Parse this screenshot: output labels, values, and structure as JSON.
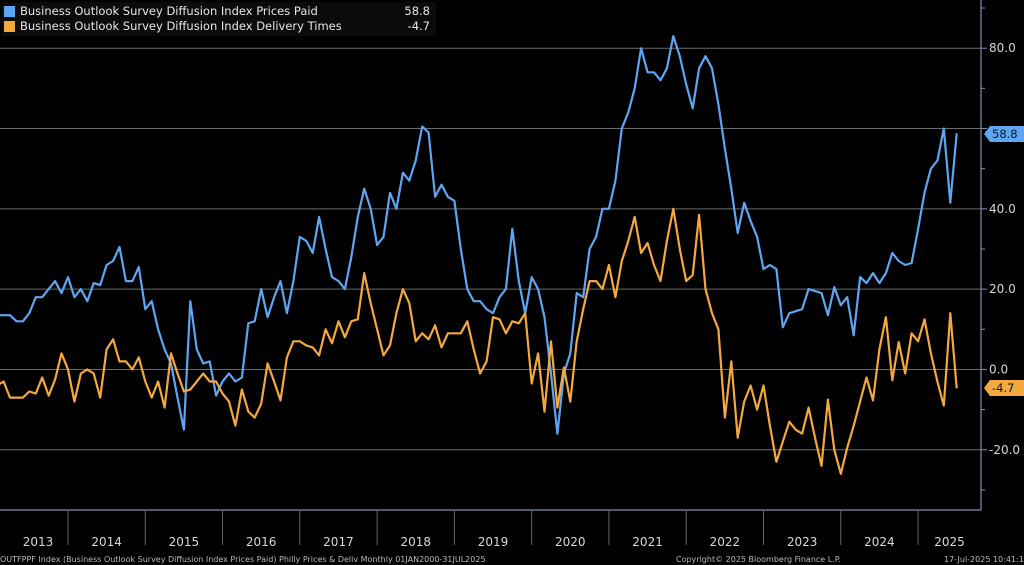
{
  "legend": [
    {
      "name": "Business Outlook Survey Diffusion Index Prices Paid",
      "value": "58.8",
      "color": "#5ea6f2"
    },
    {
      "name": "Business Outlook Survey Diffusion Index Delivery Times",
      "value": "-4.7",
      "color": "#f4a83e"
    }
  ],
  "footer": {
    "source": "OUTFPPF Index (Business Outlook Survey Diffusion Index Prices Paid) Philly Prices & Deliv  Monthly 01JAN2000-31JUL2025",
    "copyright": "Copyright© 2025 Bloomberg Finance L.P.",
    "timestamp": "17-Jul-2025 10:41:1"
  },
  "chart_data": {
    "type": "line",
    "title": "",
    "xlabel": "",
    "ylabel": "",
    "x_start": "2013-01",
    "frequency": "monthly",
    "x_ticks": [
      "2013",
      "2014",
      "2015",
      "2016",
      "2017",
      "2018",
      "2019",
      "2020",
      "2021",
      "2022",
      "2023",
      "2024",
      "2025"
    ],
    "y_ticks": [
      {
        "value": 80,
        "label": "80.0"
      },
      {
        "value": 40,
        "label": "40.0"
      },
      {
        "value": 20,
        "label": "20.0"
      },
      {
        "value": 0,
        "label": "0.0"
      },
      {
        "value": -20,
        "label": "-20.0"
      }
    ],
    "gridlines": [
      80,
      60,
      40,
      20,
      0,
      -20
    ],
    "ylim": [
      -35,
      92
    ],
    "grid": true,
    "y_axis_side": "right",
    "legend_position": "top-left",
    "series": [
      {
        "name": "Business Outlook Survey Diffusion Index Prices Paid",
        "color": "#5ea6f2",
        "last_value": "58.8",
        "values": [
          14,
          13.5,
          13.5,
          13.5,
          12,
          12,
          14,
          18,
          18,
          20,
          22,
          19,
          23,
          18,
          20,
          17,
          21.5,
          21,
          26,
          27,
          30.5,
          22,
          22,
          25.5,
          15,
          17,
          10,
          5,
          1.5,
          -7,
          -15,
          17,
          5,
          1.5,
          2,
          -6.5,
          -3,
          -1,
          -3,
          -2,
          11.5,
          12,
          20,
          13,
          18,
          22,
          14,
          22,
          33,
          32,
          29,
          38,
          30,
          23,
          22,
          20,
          28,
          38,
          45,
          40,
          31,
          33,
          44,
          40,
          49,
          47,
          52,
          60.5,
          59,
          43,
          46,
          43,
          42,
          30,
          20,
          17,
          17,
          15,
          14,
          18,
          20,
          35,
          22,
          14,
          23,
          20,
          13,
          -1,
          -16,
          -1,
          4,
          19,
          18,
          30,
          33,
          40,
          40,
          47,
          60,
          64,
          70,
          80,
          74,
          74,
          72,
          75,
          83,
          78,
          71,
          65,
          75,
          78,
          75,
          66,
          55,
          45,
          34,
          41.5,
          37,
          33,
          25,
          26,
          25,
          10.5,
          14,
          14.5,
          15,
          20,
          19.5,
          19,
          13.5,
          20.5,
          16,
          18,
          8.5,
          23,
          21.5,
          24,
          21.5,
          24,
          29,
          27,
          26,
          26.5,
          35,
          44,
          50,
          52,
          60,
          41.5,
          58.8
        ]
      },
      {
        "name": "Business Outlook Survey Diffusion Index Delivery Times",
        "color": "#f4a83e",
        "last_value": "-4.7",
        "values": [
          -3,
          -4,
          -3,
          -7,
          -7,
          -7,
          -5.5,
          -6,
          -2,
          -6.5,
          -2.5,
          4,
          0,
          -8,
          -1,
          0,
          -1,
          -7,
          5,
          7.5,
          2,
          2,
          0,
          3,
          -3,
          -7,
          -3,
          -9.5,
          4,
          -1,
          -5.5,
          -5,
          -3,
          -1,
          -3,
          -3,
          -6,
          -8,
          -14,
          -5,
          -10.5,
          -12,
          -8.5,
          1.5,
          -3,
          -7.7,
          3,
          7,
          7,
          6,
          5.5,
          3.5,
          10,
          6.5,
          12,
          8,
          12,
          12.5,
          24,
          16.5,
          10,
          3.5,
          6,
          14,
          20,
          16.5,
          7,
          9,
          7.5,
          11,
          5.5,
          9,
          9,
          9,
          12,
          5,
          -1,
          2,
          13,
          12.5,
          9,
          12,
          11.5,
          14,
          -3.5,
          4,
          -10.5,
          7,
          -9.5,
          0.5,
          -8,
          7,
          15,
          22,
          22,
          20,
          26,
          18,
          27,
          32,
          38,
          29,
          31.5,
          26,
          22,
          32,
          40,
          30,
          22,
          23.5,
          38.5,
          20,
          14,
          10,
          -12,
          2,
          -17,
          -8,
          -4,
          -10,
          -4,
          -14,
          -23,
          -18,
          -13,
          -15,
          -16,
          -9.5,
          -17,
          -24,
          -7.5,
          -20,
          -26,
          -19.5,
          -14,
          -8,
          -2,
          -7.7,
          5,
          13,
          -2.7,
          6.8,
          -1,
          9,
          7,
          12.5,
          4,
          -3,
          -9,
          14,
          -4.7
        ]
      }
    ]
  }
}
